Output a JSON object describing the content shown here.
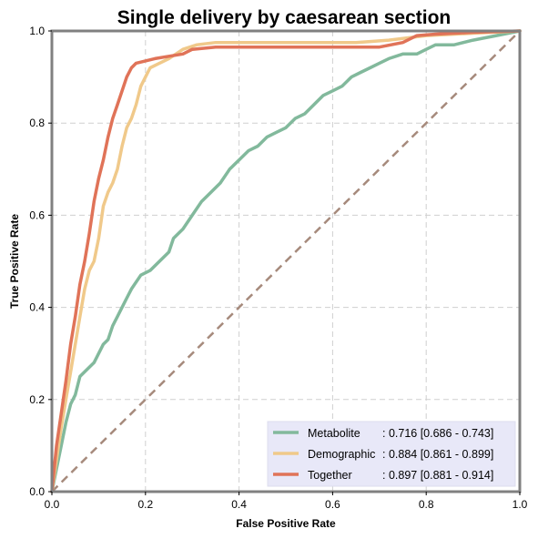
{
  "chart_data": {
    "type": "line",
    "title": "Single delivery by caesarean section",
    "xlabel": "False Positive Rate",
    "ylabel": "True Positive Rate",
    "xlim": [
      0,
      1
    ],
    "ylim": [
      0,
      1
    ],
    "x_ticks": [
      "0.0",
      "0.2",
      "0.4",
      "0.6",
      "0.8",
      "1.0"
    ],
    "y_ticks": [
      "0.0",
      "0.2",
      "0.4",
      "0.6",
      "0.8",
      "1.0"
    ],
    "grid": true,
    "legend_position": "lower-right",
    "series": [
      {
        "name": "Metabolite",
        "auc_label": ": 0.716 [0.686 - 0.743]",
        "color": "#82b99c",
        "points": [
          [
            0,
            0
          ],
          [
            0.01,
            0.05
          ],
          [
            0.02,
            0.1
          ],
          [
            0.03,
            0.15
          ],
          [
            0.04,
            0.19
          ],
          [
            0.05,
            0.21
          ],
          [
            0.06,
            0.25
          ],
          [
            0.07,
            0.26
          ],
          [
            0.09,
            0.28
          ],
          [
            0.1,
            0.3
          ],
          [
            0.11,
            0.32
          ],
          [
            0.12,
            0.33
          ],
          [
            0.13,
            0.36
          ],
          [
            0.14,
            0.38
          ],
          [
            0.15,
            0.4
          ],
          [
            0.16,
            0.42
          ],
          [
            0.17,
            0.44
          ],
          [
            0.19,
            0.47
          ],
          [
            0.21,
            0.48
          ],
          [
            0.23,
            0.5
          ],
          [
            0.25,
            0.52
          ],
          [
            0.26,
            0.55
          ],
          [
            0.28,
            0.57
          ],
          [
            0.3,
            0.6
          ],
          [
            0.32,
            0.63
          ],
          [
            0.34,
            0.65
          ],
          [
            0.36,
            0.67
          ],
          [
            0.38,
            0.7
          ],
          [
            0.4,
            0.72
          ],
          [
            0.42,
            0.74
          ],
          [
            0.44,
            0.75
          ],
          [
            0.46,
            0.77
          ],
          [
            0.48,
            0.78
          ],
          [
            0.5,
            0.79
          ],
          [
            0.52,
            0.81
          ],
          [
            0.54,
            0.82
          ],
          [
            0.56,
            0.84
          ],
          [
            0.58,
            0.86
          ],
          [
            0.6,
            0.87
          ],
          [
            0.62,
            0.88
          ],
          [
            0.64,
            0.9
          ],
          [
            0.66,
            0.91
          ],
          [
            0.68,
            0.92
          ],
          [
            0.7,
            0.93
          ],
          [
            0.72,
            0.94
          ],
          [
            0.75,
            0.95
          ],
          [
            0.78,
            0.95
          ],
          [
            0.8,
            0.96
          ],
          [
            0.82,
            0.97
          ],
          [
            0.86,
            0.97
          ],
          [
            0.9,
            0.98
          ],
          [
            0.95,
            0.99
          ],
          [
            1,
            1
          ]
        ]
      },
      {
        "name": "Demographic",
        "auc_label": ": 0.884 [0.861 - 0.899]",
        "color": "#f0c98a",
        "points": [
          [
            0,
            0
          ],
          [
            0.01,
            0.07
          ],
          [
            0.02,
            0.14
          ],
          [
            0.03,
            0.2
          ],
          [
            0.04,
            0.26
          ],
          [
            0.05,
            0.32
          ],
          [
            0.06,
            0.38
          ],
          [
            0.07,
            0.44
          ],
          [
            0.08,
            0.48
          ],
          [
            0.09,
            0.5
          ],
          [
            0.1,
            0.55
          ],
          [
            0.11,
            0.62
          ],
          [
            0.12,
            0.65
          ],
          [
            0.13,
            0.67
          ],
          [
            0.14,
            0.7
          ],
          [
            0.15,
            0.75
          ],
          [
            0.16,
            0.79
          ],
          [
            0.17,
            0.81
          ],
          [
            0.18,
            0.84
          ],
          [
            0.19,
            0.88
          ],
          [
            0.2,
            0.9
          ],
          [
            0.21,
            0.92
          ],
          [
            0.23,
            0.93
          ],
          [
            0.25,
            0.94
          ],
          [
            0.28,
            0.96
          ],
          [
            0.31,
            0.97
          ],
          [
            0.35,
            0.975
          ],
          [
            0.5,
            0.975
          ],
          [
            0.65,
            0.975
          ],
          [
            0.72,
            0.98
          ],
          [
            0.76,
            0.985
          ],
          [
            0.8,
            0.99
          ],
          [
            0.9,
            0.995
          ],
          [
            1,
            1
          ]
        ]
      },
      {
        "name": "Together",
        "auc_label": ": 0.897 [0.881 - 0.914]",
        "color": "#e07358",
        "points": [
          [
            0,
            0
          ],
          [
            0.01,
            0.1
          ],
          [
            0.02,
            0.17
          ],
          [
            0.03,
            0.24
          ],
          [
            0.04,
            0.32
          ],
          [
            0.05,
            0.38
          ],
          [
            0.06,
            0.45
          ],
          [
            0.07,
            0.5
          ],
          [
            0.08,
            0.56
          ],
          [
            0.09,
            0.63
          ],
          [
            0.1,
            0.68
          ],
          [
            0.11,
            0.72
          ],
          [
            0.12,
            0.77
          ],
          [
            0.13,
            0.81
          ],
          [
            0.14,
            0.84
          ],
          [
            0.15,
            0.87
          ],
          [
            0.16,
            0.9
          ],
          [
            0.17,
            0.92
          ],
          [
            0.18,
            0.93
          ],
          [
            0.2,
            0.935
          ],
          [
            0.22,
            0.94
          ],
          [
            0.25,
            0.945
          ],
          [
            0.28,
            0.95
          ],
          [
            0.3,
            0.96
          ],
          [
            0.35,
            0.965
          ],
          [
            0.5,
            0.965
          ],
          [
            0.6,
            0.965
          ],
          [
            0.7,
            0.965
          ],
          [
            0.75,
            0.975
          ],
          [
            0.78,
            0.99
          ],
          [
            0.82,
            0.993
          ],
          [
            0.9,
            0.997
          ],
          [
            1,
            1
          ]
        ]
      }
    ],
    "diagonal_color": "#a68a7c"
  }
}
